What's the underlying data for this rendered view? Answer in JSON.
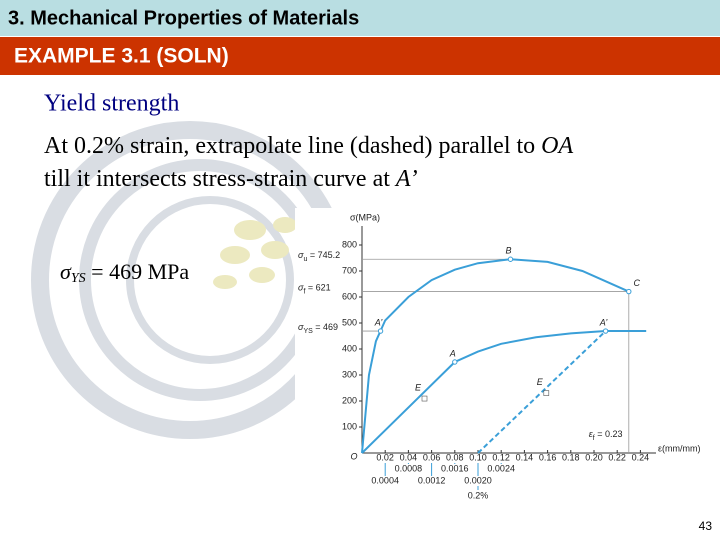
{
  "header": {
    "title": "3. Mechanical Properties of Materials",
    "subtitle": "EXAMPLE 3.1 (SOLN)"
  },
  "body": {
    "heading": "Yield strength",
    "line1": "At 0.2% strain, extrapolate line (dashed) parallel to ",
    "line1_em": "OA",
    "line2": "till it intersects stress-strain curve at ",
    "line2_em": "A’",
    "result": {
      "symbol": "σ",
      "sub": "YS",
      "text": " = 469 MPa"
    }
  },
  "figure": {
    "y_label": "σ(MPa)",
    "x_label": "ε(mm/mm)",
    "origin_label": "O",
    "ylim": [
      0,
      850
    ],
    "yticks": [
      100,
      200,
      300,
      400,
      500,
      600,
      700,
      800
    ],
    "xlim": [
      0,
      0.25
    ],
    "xticks": [
      0.02,
      0.04,
      0.06,
      0.08,
      {
        "value": 0.1,
        "label": "0.10"
      },
      0.12,
      0.14,
      0.16,
      0.18,
      {
        "value": 0.2,
        "label": "0.20"
      },
      0.22,
      0.24
    ],
    "small_xlim": [
      0,
      0.005
    ],
    "small_xticks_upper": [
      0.0008,
      0.0016,
      0.0024
    ],
    "small_xticks_lower": [
      0.0004,
      0.0012,
      {
        "value": 0.002,
        "label": "0.0020"
      }
    ],
    "offset_label": "0.2%",
    "curve": {
      "x": [
        0,
        0.006,
        0.012,
        0.02,
        0.04,
        0.06,
        0.08,
        0.1,
        0.128,
        0.16,
        0.19,
        0.23
      ],
      "y": [
        0,
        300,
        430,
        510,
        600,
        665,
        705,
        730,
        745.2,
        735,
        700,
        621
      ]
    },
    "small_curve": {
      "x": [
        0,
        0.0016,
        0.002,
        0.0024,
        0.003,
        0.0036,
        0.0042,
        0.0049
      ],
      "y": [
        0,
        350,
        390,
        420,
        445,
        460,
        469,
        469
      ]
    },
    "offset_line": {
      "x": [
        0.002,
        0.0042
      ],
      "y": [
        0,
        469
      ]
    },
    "strengths": [
      {
        "symbol": "σ",
        "sub": "u",
        "text": " = 745.2",
        "value": 745.2,
        "x": 0.128
      },
      {
        "symbol": "σ",
        "sub": "f",
        "text": " = 621",
        "value": 621,
        "x": 0.23
      },
      {
        "symbol": "σ",
        "sub": "YS",
        "text": " = 469",
        "value": 469,
        "x": 0.016
      }
    ],
    "fracture": {
      "symbol": "ε",
      "sub": "f",
      "text": " = 0.23",
      "value": 0.23
    },
    "points": [
      {
        "label": "B",
        "x": 0.128,
        "y": 745.2,
        "scale": "main"
      },
      {
        "label": "C",
        "x": 0.23,
        "y": 621,
        "scale": "main"
      },
      {
        "label": "A’",
        "x": 0.016,
        "y": 469,
        "scale": "main"
      },
      {
        "label": "A’",
        "x": 0.0042,
        "y": 469,
        "scale": "small"
      },
      {
        "label": "A",
        "x": 0.0016,
        "y": 350,
        "scale": "small"
      },
      {
        "label": "E",
        "x": 0.001,
        "y": 219,
        "scale": "small"
      },
      {
        "label": "E",
        "x": 0.0031,
        "y": 240,
        "scale": "small"
      }
    ]
  },
  "footer": {
    "page": "43"
  }
}
